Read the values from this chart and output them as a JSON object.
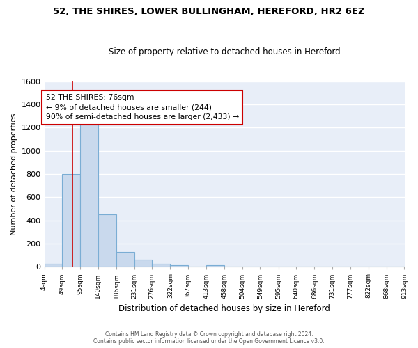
{
  "title1": "52, THE SHIRES, LOWER BULLINGHAM, HEREFORD, HR2 6EZ",
  "title2": "Size of property relative to detached houses in Hereford",
  "xlabel": "Distribution of detached houses by size in Hereford",
  "ylabel": "Number of detached properties",
  "bar_values": [
    25,
    800,
    1225,
    450,
    125,
    60,
    25,
    15,
    0,
    15,
    0,
    0,
    0,
    0,
    0,
    0,
    0,
    0,
    0,
    0
  ],
  "bin_edges": [
    4,
    49,
    95,
    140,
    186,
    231,
    276,
    322,
    367,
    413,
    458,
    504,
    549,
    595,
    640,
    686,
    731,
    777,
    822,
    868,
    913
  ],
  "tick_labels": [
    "4sqm",
    "49sqm",
    "95sqm",
    "140sqm",
    "186sqm",
    "231sqm",
    "276sqm",
    "322sqm",
    "367sqm",
    "413sqm",
    "458sqm",
    "504sqm",
    "549sqm",
    "595sqm",
    "640sqm",
    "686sqm",
    "731sqm",
    "777sqm",
    "822sqm",
    "868sqm",
    "913sqm"
  ],
  "bar_color": "#c9d9ed",
  "bar_edge_color": "#7aadd4",
  "bg_color": "#e8eef8",
  "grid_color": "#ffffff",
  "fig_bg_color": "#ffffff",
  "red_line_x": 76,
  "annotation_text": "52 THE SHIRES: 76sqm\n← 9% of detached houses are smaller (244)\n90% of semi-detached houses are larger (2,433) →",
  "annotation_box_color": "#ffffff",
  "annotation_box_edge": "#cc0000",
  "ylim": [
    0,
    1600
  ],
  "yticks": [
    0,
    200,
    400,
    600,
    800,
    1000,
    1200,
    1400,
    1600
  ],
  "footer1": "Contains HM Land Registry data © Crown copyright and database right 2024.",
  "footer2": "Contains public sector information licensed under the Open Government Licence v3.0."
}
